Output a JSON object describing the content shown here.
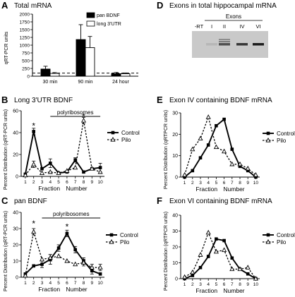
{
  "figure": {
    "panels": [
      {
        "letter": "A",
        "title": "Total mRNA"
      },
      {
        "letter": "B",
        "title": "Long 3'UTR BDNF"
      },
      {
        "letter": "C",
        "title": "pan BDNF"
      },
      {
        "letter": "D",
        "title": "Exons in total hippocampal mRNA"
      },
      {
        "letter": "E",
        "title": "Exon IV containing BDNF mRNA"
      },
      {
        "letter": "F",
        "title": "Exon VI containing BDNF mRNA"
      }
    ]
  },
  "gel": {
    "header": "Exons",
    "lanes": [
      "-RT",
      "I",
      "II",
      "IV",
      "VI"
    ],
    "band_intensity": [
      0,
      0.1,
      0.7,
      0.85,
      1.0
    ]
  },
  "colors": {
    "ink": "#000000",
    "gel_background": "#c9c9c9",
    "band": "#1e1e1e"
  },
  "chart_data": [
    {
      "id": "A",
      "type": "bar",
      "title": "Total mRNA",
      "xlabel": "",
      "ylabel": "qRT-PCR units",
      "ylim": [
        0,
        2000
      ],
      "yticks": [
        0,
        250,
        500,
        750,
        1000,
        1250,
        1500,
        1750,
        2000
      ],
      "categories": [
        "30 min",
        "90 min",
        "24 hour"
      ],
      "series": [
        {
          "name": "pan BDNF",
          "fill": "#000000",
          "values": [
            230,
            1180,
            80
          ],
          "errors": [
            90,
            480,
            40
          ]
        },
        {
          "name": "long 3'UTR",
          "fill": "#ffffff",
          "values": [
            90,
            920,
            80
          ],
          "errors": [
            25,
            360,
            25
          ]
        }
      ],
      "baseline": 100,
      "legend": "top-right"
    },
    {
      "id": "B",
      "type": "line",
      "title": "Long 3'UTR BDNF",
      "xlabel": "Fraction Number",
      "ylabel": "Percent Distribution (qRT-PCR units)",
      "xticks": [
        1,
        2,
        3,
        4,
        5,
        6,
        7,
        8,
        9,
        10
      ],
      "ylim": [
        0,
        60
      ],
      "yticks": [
        0,
        20,
        40,
        60
      ],
      "annotation": "polyribosomes",
      "annotation_range": [
        4,
        10
      ],
      "stars": [
        {
          "x": 2,
          "y": 46,
          "text": "*"
        },
        {
          "x": 8,
          "y": 55,
          "text": "*"
        }
      ],
      "legend": "right",
      "series": [
        {
          "name": "Control",
          "style": "solid",
          "marker": "square",
          "x": [
            1,
            2,
            3,
            4,
            5,
            6,
            7,
            8,
            9,
            10
          ],
          "y": [
            2,
            41,
            7,
            12,
            3,
            4,
            15,
            4,
            7,
            8
          ],
          "err": [
            0,
            3,
            0,
            4,
            0,
            0,
            2,
            0,
            0,
            4
          ]
        },
        {
          "name": "Pilo",
          "style": "dashed",
          "marker": "triangle",
          "x": [
            1,
            2,
            3,
            4,
            5,
            6,
            7,
            8,
            9,
            10
          ],
          "y": [
            1,
            11,
            3,
            4,
            3,
            5,
            8,
            51,
            7,
            4
          ],
          "err": [
            0,
            3,
            0,
            0,
            0,
            0,
            0,
            3,
            0,
            0
          ]
        }
      ]
    },
    {
      "id": "C",
      "type": "line",
      "title": "pan BDNF",
      "xlabel": "Fraction Number",
      "ylabel": "Percent Distribution (qRT-PCR units)",
      "xticks": [
        1,
        2,
        3,
        4,
        5,
        6,
        7,
        8,
        9,
        10
      ],
      "ylim": [
        0,
        40
      ],
      "yticks": [
        0,
        10,
        20,
        30,
        40
      ],
      "annotation": "polyribosomes",
      "annotation_range": [
        3,
        10
      ],
      "stars": [
        {
          "x": 2,
          "y": 33,
          "text": "*"
        },
        {
          "x": 6,
          "y": 31,
          "text": "*"
        }
      ],
      "legend": "right",
      "series": [
        {
          "name": "Control",
          "style": "solid",
          "marker": "square",
          "x": [
            1,
            2,
            3,
            4,
            5,
            6,
            7,
            8,
            9,
            10
          ],
          "y": [
            2,
            7,
            8,
            11,
            18,
            27,
            17,
            10,
            4,
            2
          ],
          "err": [
            0,
            0,
            2,
            3,
            2,
            2,
            2,
            2,
            2,
            0
          ]
        },
        {
          "name": "Pilo",
          "style": "dashed",
          "marker": "triangle",
          "x": [
            1,
            2,
            3,
            4,
            5,
            6,
            7,
            8,
            9,
            10
          ],
          "y": [
            1,
            28,
            11,
            12,
            13,
            10,
            8,
            9,
            6,
            6
          ],
          "err": [
            0,
            2,
            0,
            2,
            0,
            0,
            0,
            2,
            2,
            2
          ]
        }
      ]
    },
    {
      "id": "E",
      "type": "line",
      "title": "Exon IV containing BDNF mRNA",
      "xlabel": "Fraction Number",
      "ylabel": "Percent Distribution (qRTPCR units)",
      "xticks": [
        1,
        2,
        3,
        4,
        5,
        6,
        7,
        8,
        9,
        10
      ],
      "ylim": [
        0,
        30
      ],
      "yticks": [
        0,
        10,
        20,
        30
      ],
      "legend": "right",
      "series": [
        {
          "name": "Control",
          "style": "solid",
          "marker": "square",
          "x": [
            1,
            2,
            3,
            4,
            5,
            6,
            7,
            8,
            9,
            10
          ],
          "y": [
            0,
            3,
            9,
            15,
            24,
            27,
            13,
            5,
            3,
            0
          ],
          "err": [
            0,
            0,
            0,
            0,
            0,
            0,
            0,
            0,
            0,
            0
          ]
        },
        {
          "name": "Pilo",
          "style": "dashed",
          "marker": "triangle",
          "x": [
            1,
            2,
            3,
            4,
            5,
            6,
            7,
            8,
            9,
            10
          ],
          "y": [
            1,
            13,
            18,
            28,
            14,
            12,
            6,
            6,
            4,
            1
          ],
          "err": [
            0,
            0,
            0,
            0,
            0,
            0,
            0,
            0,
            0,
            0
          ]
        }
      ]
    },
    {
      "id": "F",
      "type": "line",
      "title": "Exon VI containing BDNF mRNA",
      "xlabel": "Fraction Number",
      "ylabel": "Percent Distribution (qRTPCR units)",
      "xticks": [
        1,
        2,
        3,
        4,
        5,
        6,
        7,
        8,
        9,
        10
      ],
      "ylim": [
        0,
        40
      ],
      "yticks": [
        0,
        10,
        20,
        30,
        40
      ],
      "legend": "right",
      "series": [
        {
          "name": "Control",
          "style": "solid",
          "marker": "square",
          "x": [
            1,
            2,
            3,
            4,
            5,
            6,
            7,
            8,
            9,
            10
          ],
          "y": [
            0,
            2,
            7,
            14,
            25,
            24,
            13,
            6,
            3,
            0
          ],
          "err": [
            0,
            0,
            0,
            0,
            0,
            0,
            0,
            0,
            0,
            0
          ]
        },
        {
          "name": "Pilo",
          "style": "dashed",
          "marker": "triangle",
          "x": [
            1,
            2,
            3,
            4,
            5,
            6,
            7,
            8,
            9,
            10
          ],
          "y": [
            1,
            4,
            15,
            29,
            17,
            18,
            6,
            6,
            7,
            0
          ],
          "err": [
            0,
            0,
            0,
            0,
            0,
            0,
            0,
            0,
            0,
            0
          ]
        }
      ]
    }
  ]
}
